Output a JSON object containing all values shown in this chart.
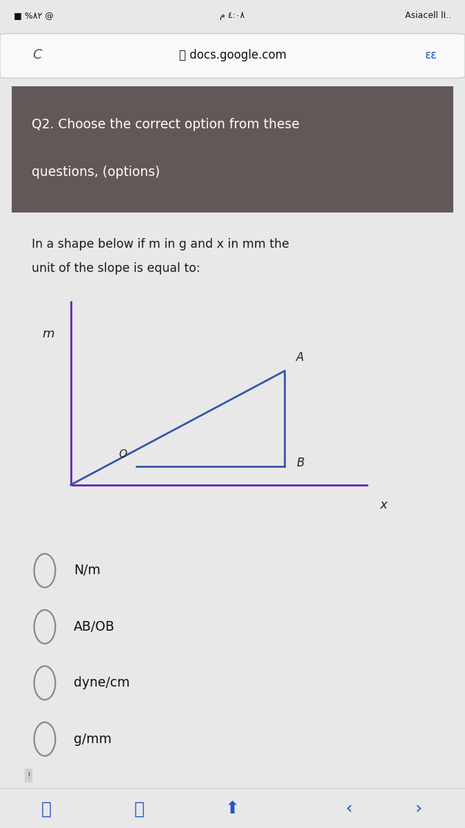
{
  "bg_color": "#e8e8e8",
  "card_bg": "#ffffff",
  "header_bg": "#635858",
  "header_text_color": "#ffffff",
  "header_line1": "Q2. Choose the correct option from these",
  "header_line2": "questions, (options)",
  "body_line1": "In a shape below if m in g and x in mm the",
  "body_line2": "unit of the slope is equal to:",
  "body_text_color": "#1a1a1a",
  "options": [
    "N/m",
    "AB/OB",
    "dyne/cm",
    "g/mm"
  ],
  "status_bg": "#e8e8e8",
  "url_bar_bg": "#efefef",
  "url_text": "docs.google.com",
  "nav_bg": "#f5f5f5",
  "axis_color": "#6633aa",
  "triangle_color": "#3355aa",
  "label_color": "#222222"
}
